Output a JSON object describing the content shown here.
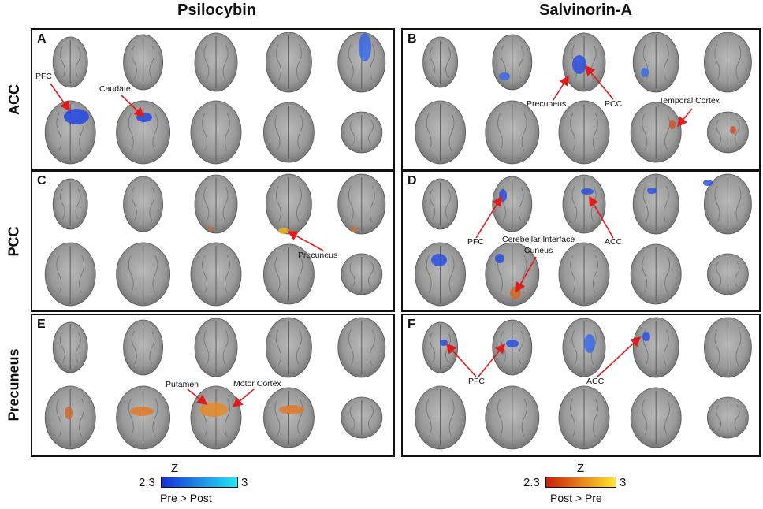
{
  "columns": [
    "Psilocybin",
    "Salvinorin-A"
  ],
  "rows": [
    "ACC",
    "PCC",
    "Precuneus"
  ],
  "panels": [
    "A",
    "B",
    "C",
    "D",
    "E",
    "F"
  ],
  "annotations": {
    "a_pfc": "PFC",
    "a_caudate": "Caudate",
    "b_precuneus": "Precuneus",
    "b_pcc": "PCC",
    "b_temporal": "Temporal Cortex",
    "c_precuneus": "Precuneus",
    "d_pfc": "PFC",
    "d_acc": "ACC",
    "d_cereb": "Cerebellar Interface",
    "d_cuneus": "Cuneus",
    "e_putamen": "Putamen",
    "e_motor": "Motor Cortex",
    "f_pfc": "PFC",
    "f_acc": "ACC"
  },
  "legends": [
    {
      "title": "Z",
      "min": "2.3",
      "max": "3",
      "label": "Pre > Post",
      "colors": [
        "#1a2fd6",
        "#22e8f0"
      ]
    },
    {
      "title": "Z",
      "min": "2.3",
      "max": "3",
      "label": "Post > Pre",
      "colors": [
        "#c81e0a",
        "#ffe82a"
      ]
    }
  ]
}
